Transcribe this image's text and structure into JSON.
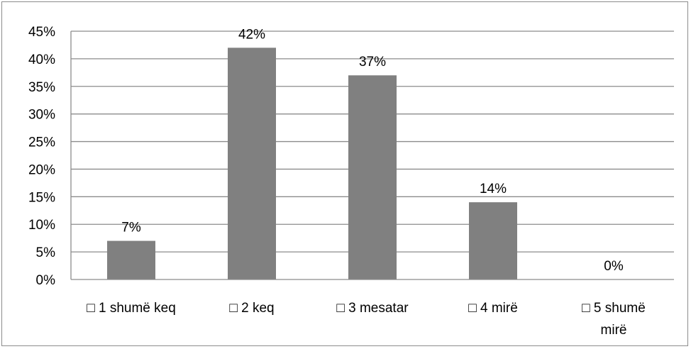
{
  "chart_data": {
    "type": "bar",
    "title": "",
    "xlabel": "",
    "ylabel": "",
    "categories": [
      [
        "□ 1 shumë keq"
      ],
      [
        "□ 2 keq"
      ],
      [
        "□ 3 mesatar"
      ],
      [
        "□ 4 mirë"
      ],
      [
        "□ 5 shumë",
        "mirë"
      ]
    ],
    "values": [
      7,
      42,
      37,
      14,
      0
    ],
    "data_labels": [
      "7%",
      "42%",
      "37%",
      "14%",
      "0%"
    ],
    "ylim": [
      0,
      45
    ],
    "yticks": [
      0,
      5,
      10,
      15,
      20,
      25,
      30,
      35,
      40,
      45
    ],
    "ytick_labels": [
      "0%",
      "5%",
      "10%",
      "15%",
      "20%",
      "25%",
      "30%",
      "35%",
      "40%",
      "45%"
    ],
    "grid": true,
    "legend": "none",
    "bar_color": "#808080",
    "grid_color": "#8c8c8c",
    "axis_color": "#8c8c8c"
  }
}
